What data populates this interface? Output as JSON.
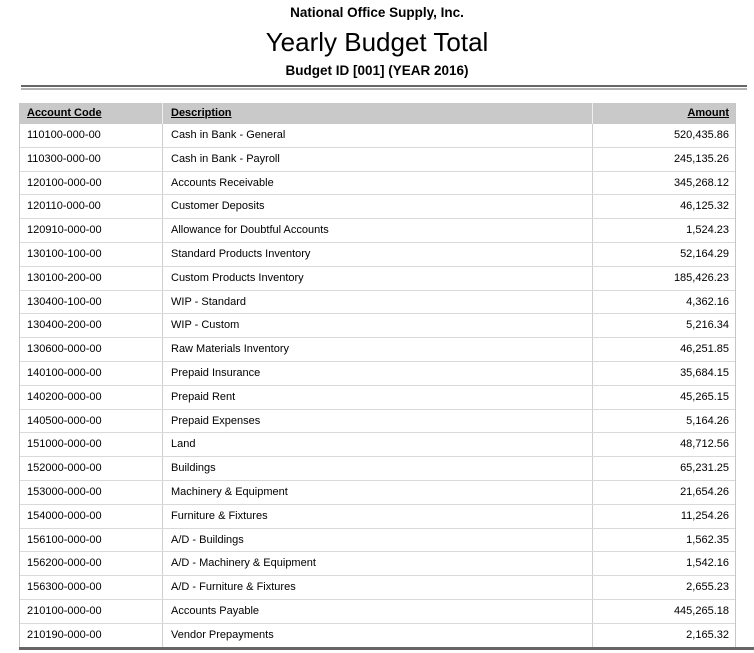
{
  "report": {
    "company": "National Office Supply, Inc.",
    "title": "Yearly Budget Total",
    "subtitle": "Budget ID [001] (YEAR 2016)"
  },
  "table": {
    "columns": {
      "account_code": "Account Code",
      "description": "Description",
      "amount": "Amount"
    },
    "rows": [
      {
        "code": "110100-000-00",
        "description": "Cash in Bank - General",
        "amount": "520,435.86"
      },
      {
        "code": "110300-000-00",
        "description": "Cash in Bank - Payroll",
        "amount": "245,135.26"
      },
      {
        "code": "120100-000-00",
        "description": "Accounts Receivable",
        "amount": "345,268.12"
      },
      {
        "code": "120110-000-00",
        "description": "Customer Deposits",
        "amount": "46,125.32"
      },
      {
        "code": "120910-000-00",
        "description": "Allowance for Doubtful Accounts",
        "amount": "1,524.23"
      },
      {
        "code": "130100-100-00",
        "description": "Standard Products Inventory",
        "amount": "52,164.29"
      },
      {
        "code": "130100-200-00",
        "description": "Custom Products Inventory",
        "amount": "185,426.23"
      },
      {
        "code": "130400-100-00",
        "description": "WIP - Standard",
        "amount": "4,362.16"
      },
      {
        "code": "130400-200-00",
        "description": "WIP - Custom",
        "amount": "5,216.34"
      },
      {
        "code": "130600-000-00",
        "description": "Raw Materials Inventory",
        "amount": "46,251.85"
      },
      {
        "code": "140100-000-00",
        "description": "Prepaid Insurance",
        "amount": "35,684.15"
      },
      {
        "code": "140200-000-00",
        "description": "Prepaid Rent",
        "amount": "45,265.15"
      },
      {
        "code": "140500-000-00",
        "description": "Prepaid Expenses",
        "amount": "5,164.26"
      },
      {
        "code": "151000-000-00",
        "description": "Land",
        "amount": "48,712.56"
      },
      {
        "code": "152000-000-00",
        "description": "Buildings",
        "amount": "65,231.25"
      },
      {
        "code": "153000-000-00",
        "description": "Machinery & Equipment",
        "amount": "21,654.26"
      },
      {
        "code": "154000-000-00",
        "description": "Furniture & Fixtures",
        "amount": "11,254.26"
      },
      {
        "code": "156100-000-00",
        "description": "A/D - Buildings",
        "amount": "1,562.35"
      },
      {
        "code": "156200-000-00",
        "description": "A/D - Machinery & Equipment",
        "amount": "1,542.16"
      },
      {
        "code": "156300-000-00",
        "description": "A/D - Furniture & Fixtures",
        "amount": "2,655.23"
      },
      {
        "code": "210100-000-00",
        "description": "Accounts Payable",
        "amount": "445,265.18"
      },
      {
        "code": "210190-000-00",
        "description": "Vendor Prepayments",
        "amount": "2,165.32"
      }
    ]
  },
  "colors": {
    "header_bg": "#c9c9c9",
    "rule_dark": "#666666",
    "rule_light": "#b4b4b4",
    "table_border": "#c6c6c6",
    "row_divider": "#d9d9d9",
    "text": "#000000"
  }
}
